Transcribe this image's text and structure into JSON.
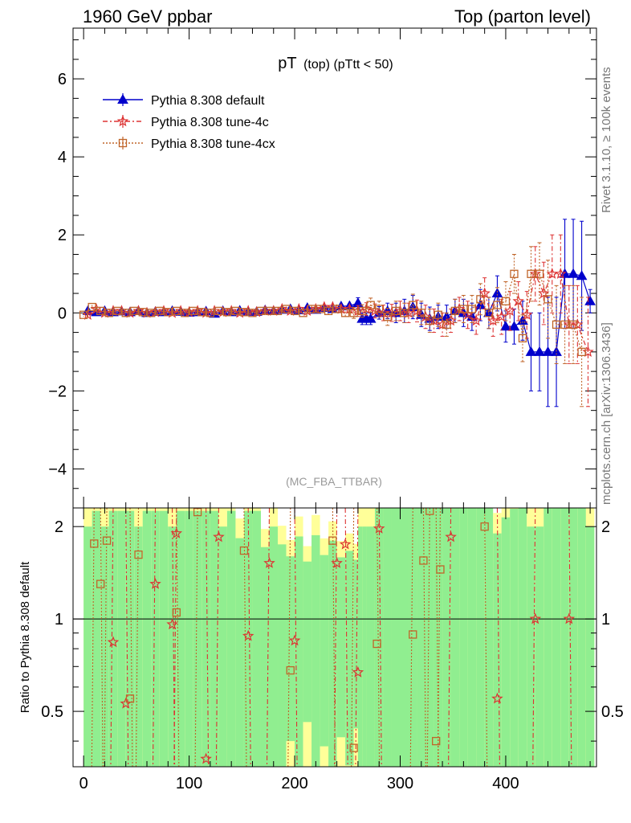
{
  "header": {
    "left": "1960 GeV ppbar",
    "right": "Top (parton level)"
  },
  "side_labels": {
    "rivet": "Rivet 3.1.10, ≥ 100k events",
    "source": "mcplots.cern.ch [arXiv:1306.3436]"
  },
  "chart_data": {
    "type": "line",
    "title": "pT",
    "title_small": "(top) (pTtt < 50)",
    "watermark": "(MC_FBA_TTBAR)",
    "xlim": [
      -10,
      486
    ],
    "ylim": [
      -5,
      7.3
    ],
    "x_ticks": [
      0,
      100,
      200,
      300,
      400
    ],
    "y_ticks": [
      -4,
      -2,
      0,
      2,
      4,
      6
    ],
    "legend_position": "top-left",
    "series": [
      {
        "name": "Pythia 8.308 default",
        "color": "#0000cc",
        "marker": "triangle",
        "dash": "",
        "x": [
          4,
          12,
          20,
          28,
          36,
          44,
          52,
          60,
          68,
          76,
          84,
          92,
          100,
          108,
          116,
          124,
          132,
          140,
          148,
          156,
          164,
          172,
          180,
          188,
          196,
          204,
          212,
          220,
          228,
          236,
          244,
          252,
          260,
          264,
          268,
          272,
          280,
          288,
          296,
          304,
          312,
          320,
          328,
          336,
          344,
          352,
          360,
          368,
          376,
          384,
          392,
          400,
          408,
          416,
          424,
          432,
          440,
          448,
          456,
          464,
          472,
          480
        ],
        "y": [
          0.05,
          0.02,
          0.05,
          0.02,
          0.04,
          0.02,
          0.05,
          0.0,
          0.03,
          0.02,
          0.05,
          0.03,
          0.01,
          0.02,
          0.04,
          -0.02,
          0.05,
          0.02,
          0.06,
          0.03,
          0.03,
          0.07,
          0.05,
          0.08,
          0.1,
          0.07,
          0.13,
          0.08,
          0.13,
          0.1,
          0.17,
          0.18,
          0.25,
          -0.15,
          -0.15,
          -0.15,
          0.0,
          0.05,
          0.0,
          0.05,
          0.15,
          -0.05,
          -0.15,
          -0.1,
          -0.1,
          0.05,
          0.0,
          -0.1,
          0.2,
          0.0,
          0.5,
          -0.35,
          -0.35,
          -0.2,
          -1.0,
          -1.0,
          -1.0,
          -1.0,
          1.0,
          1.0,
          0.95,
          0.3
        ],
        "err": [
          0.05,
          0.05,
          0.05,
          0.05,
          0.05,
          0.05,
          0.05,
          0.05,
          0.05,
          0.05,
          0.05,
          0.05,
          0.05,
          0.05,
          0.05,
          0.05,
          0.05,
          0.05,
          0.05,
          0.05,
          0.05,
          0.05,
          0.05,
          0.06,
          0.06,
          0.06,
          0.07,
          0.07,
          0.08,
          0.08,
          0.1,
          0.12,
          0.14,
          0.15,
          0.15,
          0.15,
          0.16,
          0.2,
          0.25,
          0.3,
          0.3,
          0.3,
          0.3,
          0.3,
          0.3,
          0.3,
          0.35,
          0.35,
          0.4,
          0.4,
          0.45,
          0.4,
          0.45,
          0.5,
          1.0,
          1.0,
          1.4,
          1.4,
          1.4,
          1.4,
          1.4,
          0.3
        ]
      },
      {
        "name": "Pythia 8.308 tune-4c",
        "color": "#dd3333",
        "marker": "star",
        "dash": "6,3,2,3",
        "x": [
          4,
          12,
          20,
          28,
          36,
          44,
          52,
          60,
          68,
          76,
          84,
          92,
          100,
          108,
          116,
          124,
          132,
          140,
          148,
          156,
          164,
          172,
          180,
          188,
          196,
          204,
          212,
          220,
          228,
          236,
          244,
          252,
          260,
          268,
          276,
          284,
          292,
          300,
          308,
          316,
          324,
          332,
          340,
          348,
          356,
          364,
          372,
          380,
          388,
          396,
          404,
          412,
          420,
          428,
          436,
          444,
          452,
          460,
          468,
          478
        ],
        "y": [
          -0.05,
          0.1,
          0.0,
          0.05,
          0.05,
          0.0,
          0.05,
          0.0,
          0.02,
          0.05,
          0.0,
          0.05,
          0.02,
          0.05,
          0.0,
          0.05,
          0.02,
          0.05,
          0.0,
          0.05,
          0.02,
          0.05,
          0.05,
          0.1,
          0.05,
          0.1,
          0.05,
          0.1,
          0.15,
          0.15,
          0.1,
          0.1,
          0.05,
          0.1,
          0.05,
          0.0,
          0.0,
          0.05,
          0.0,
          0.05,
          -0.1,
          -0.2,
          -0.3,
          -0.2,
          0.1,
          -0.05,
          -0.2,
          0.5,
          -0.2,
          -0.1,
          0.05,
          0.3,
          -0.05,
          1.0,
          0.5,
          1.0,
          1.0,
          -0.3,
          -0.3,
          -1.0
        ],
        "err": [
          0.05,
          0.05,
          0.05,
          0.05,
          0.05,
          0.05,
          0.05,
          0.05,
          0.05,
          0.05,
          0.05,
          0.05,
          0.05,
          0.05,
          0.05,
          0.05,
          0.05,
          0.05,
          0.05,
          0.05,
          0.05,
          0.05,
          0.06,
          0.06,
          0.06,
          0.07,
          0.08,
          0.08,
          0.1,
          0.1,
          0.12,
          0.12,
          0.14,
          0.16,
          0.18,
          0.2,
          0.22,
          0.25,
          0.25,
          0.28,
          0.3,
          0.3,
          0.3,
          0.3,
          0.3,
          0.35,
          0.35,
          0.4,
          0.4,
          0.45,
          0.5,
          0.5,
          0.6,
          0.7,
          0.8,
          1.0,
          1.0,
          1.0,
          1.0,
          1.4
        ]
      },
      {
        "name": "Pythia 8.308 tune-4cx",
        "color": "#c0652a",
        "marker": "square",
        "dash": "2,2",
        "x": [
          0,
          8,
          16,
          24,
          32,
          40,
          48,
          56,
          64,
          72,
          80,
          88,
          96,
          104,
          112,
          120,
          128,
          136,
          144,
          152,
          160,
          168,
          176,
          184,
          192,
          200,
          208,
          216,
          224,
          232,
          240,
          248,
          256,
          264,
          272,
          280,
          288,
          296,
          304,
          312,
          320,
          328,
          336,
          344,
          352,
          360,
          368,
          376,
          384,
          392,
          400,
          408,
          416,
          424,
          432,
          440,
          448,
          456,
          464,
          472
        ],
        "y": [
          -0.05,
          0.15,
          0.05,
          0.0,
          0.05,
          0.0,
          0.05,
          0.02,
          0.0,
          0.05,
          0.02,
          0.05,
          0.0,
          0.05,
          0.02,
          0.0,
          0.05,
          0.02,
          0.05,
          0.02,
          0.0,
          0.05,
          0.05,
          0.05,
          0.1,
          0.05,
          0.0,
          0.1,
          0.1,
          0.05,
          0.1,
          0.0,
          0.0,
          0.05,
          0.2,
          0.1,
          -0.1,
          0.05,
          0.0,
          0.2,
          0.0,
          -0.2,
          -0.05,
          -0.3,
          0.05,
          0.1,
          0.1,
          0.35,
          0.0,
          0.2,
          0.3,
          1.0,
          -0.65,
          1.0,
          1.0,
          0.35,
          -0.3,
          -0.3,
          -0.3,
          -1.0
        ],
        "err": [
          0.05,
          0.05,
          0.05,
          0.05,
          0.05,
          0.05,
          0.05,
          0.05,
          0.05,
          0.05,
          0.05,
          0.05,
          0.05,
          0.05,
          0.05,
          0.05,
          0.05,
          0.05,
          0.05,
          0.05,
          0.05,
          0.05,
          0.06,
          0.06,
          0.06,
          0.07,
          0.08,
          0.08,
          0.1,
          0.1,
          0.12,
          0.12,
          0.14,
          0.16,
          0.18,
          0.2,
          0.22,
          0.25,
          0.25,
          0.28,
          0.3,
          0.3,
          0.3,
          0.3,
          0.3,
          0.35,
          0.35,
          0.4,
          0.4,
          0.45,
          0.5,
          0.5,
          0.6,
          0.7,
          0.8,
          1.0,
          1.0,
          1.0,
          1.0,
          1.4
        ]
      }
    ],
    "ratio": {
      "ylabel": "Ratio to Pythia 8.308 default",
      "ylim": [
        0.33,
        2.3
      ],
      "y_ticks": [
        0.5,
        1,
        2
      ],
      "y_tick_labels": [
        "0.5",
        "1",
        "2"
      ],
      "band_colors": {
        "inner": "#90ee90",
        "outer": "#ffff99"
      },
      "series": [
        {
          "name": "Pythia 8.308 tune-4c",
          "x": [
            28,
            40,
            68,
            84,
            88,
            116,
            128,
            156,
            176,
            200,
            240,
            248,
            260,
            280,
            348,
            392,
            428,
            460
          ],
          "y": [
            0.84,
            0.53,
            1.3,
            0.96,
            1.9,
            0.35,
            1.85,
            0.88,
            1.52,
            0.85,
            1.52,
            1.75,
            0.67,
            1.97,
            1.85,
            0.55,
            1.0,
            1.0
          ]
        },
        {
          "name": "Pythia 8.308 tune-4cx",
          "x": [
            10,
            16,
            22,
            44,
            52,
            88,
            108,
            152,
            196,
            236,
            256,
            278,
            312,
            322,
            328,
            334,
            338,
            380
          ],
          "y": [
            1.76,
            1.3,
            1.8,
            0.55,
            1.62,
            1.05,
            2.23,
            1.67,
            0.68,
            1.8,
            0.38,
            0.83,
            0.89,
            1.55,
            2.25,
            0.4,
            1.45,
            2.0
          ]
        }
      ]
    }
  }
}
